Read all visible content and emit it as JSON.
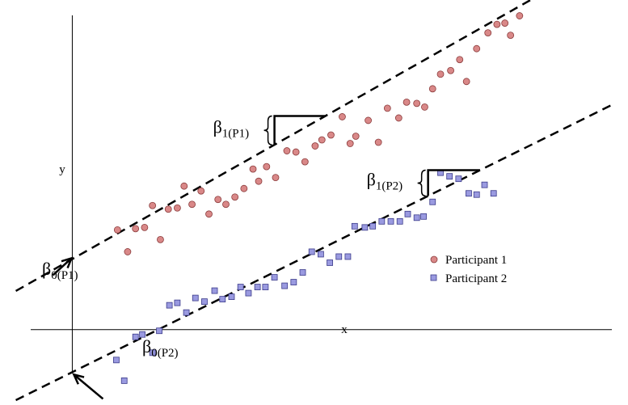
{
  "chart_data": {
    "type": "scatter",
    "xlabel": "x",
    "ylabel": "y",
    "grid": false,
    "legend_position": "bottom-right",
    "xlim": [
      -6.4,
      49.2
    ],
    "ylim": [
      -6.2,
      27.1
    ],
    "series": [
      {
        "name": "Participant 1",
        "marker": "circle",
        "color": "#d98888",
        "edge": "#8a3b3b",
        "x": [
          4.0,
          4.9,
          5.6,
          6.4,
          7.1,
          7.8,
          8.5,
          9.3,
          9.9,
          10.6,
          11.4,
          12.1,
          12.9,
          13.6,
          14.4,
          15.2,
          16.0,
          16.5,
          17.2,
          18.0,
          19.0,
          19.8,
          20.6,
          21.5,
          22.1,
          22.9,
          23.9,
          24.6,
          25.1,
          26.2,
          27.1,
          27.9,
          28.9,
          29.6,
          30.5,
          31.2,
          31.9,
          32.6,
          33.5,
          34.3,
          34.9,
          35.8,
          36.8,
          37.6,
          38.3,
          38.8,
          39.6
        ],
        "y": [
          8.2,
          6.4,
          8.3,
          8.4,
          10.2,
          7.4,
          9.9,
          10.0,
          11.8,
          10.3,
          11.4,
          9.5,
          10.7,
          10.3,
          10.9,
          11.6,
          13.2,
          12.2,
          13.4,
          12.5,
          14.7,
          14.6,
          13.8,
          15.1,
          15.6,
          16.0,
          17.5,
          15.3,
          15.9,
          17.2,
          15.4,
          18.2,
          17.4,
          18.7,
          18.6,
          18.3,
          19.8,
          21.0,
          21.3,
          22.2,
          20.4,
          23.1,
          24.4,
          25.1,
          25.2,
          24.2,
          25.8
        ]
      },
      {
        "name": "Participant 2",
        "marker": "square",
        "color": "#9a9ae0",
        "edge": "#3b3b8a",
        "x": [
          3.9,
          4.6,
          5.6,
          6.2,
          7.1,
          7.7,
          8.6,
          9.3,
          10.1,
          10.9,
          11.7,
          12.6,
          13.3,
          14.1,
          14.9,
          15.6,
          16.4,
          17.1,
          17.9,
          18.8,
          19.6,
          20.4,
          21.2,
          22.0,
          22.8,
          23.6,
          24.4,
          25.0,
          25.9,
          26.6,
          27.4,
          28.2,
          29.0,
          29.7,
          30.5,
          31.1,
          31.9,
          32.6,
          33.4,
          34.2,
          35.1,
          35.8,
          36.5,
          37.3
        ],
        "y": [
          -2.5,
          -4.2,
          -0.6,
          -0.4,
          -1.9,
          -0.1,
          2.0,
          2.2,
          1.4,
          2.6,
          2.3,
          3.2,
          2.5,
          2.7,
          3.5,
          3.0,
          3.5,
          3.5,
          4.3,
          3.6,
          3.9,
          4.7,
          6.4,
          6.2,
          5.5,
          6.0,
          6.0,
          8.5,
          8.4,
          8.5,
          8.9,
          8.9,
          8.9,
          9.5,
          9.2,
          9.3,
          10.5,
          12.9,
          12.6,
          12.4,
          11.2,
          11.1,
          11.9,
          11.2
        ]
      }
    ],
    "fit_lines": [
      {
        "series": "Participant 1",
        "intercept": 5.8,
        "slope": 0.525
      },
      {
        "series": "Participant 2",
        "intercept": -3.5,
        "slope": 0.46
      }
    ],
    "annotations": [
      {
        "type": "intercept",
        "series": "Participant 1",
        "text": "β",
        "sub": "0(P1)"
      },
      {
        "type": "intercept",
        "series": "Participant 2",
        "text": "β",
        "sub": "0(P2)"
      },
      {
        "type": "slope",
        "series": "Participant 1",
        "text": "β",
        "sub": "1(P1)",
        "x_from": 17.9,
        "x_to": 22.4
      },
      {
        "type": "slope",
        "series": "Participant 2",
        "text": "β",
        "sub": "1(P2)",
        "x_from": 31.5,
        "x_to": 36.1
      }
    ]
  }
}
